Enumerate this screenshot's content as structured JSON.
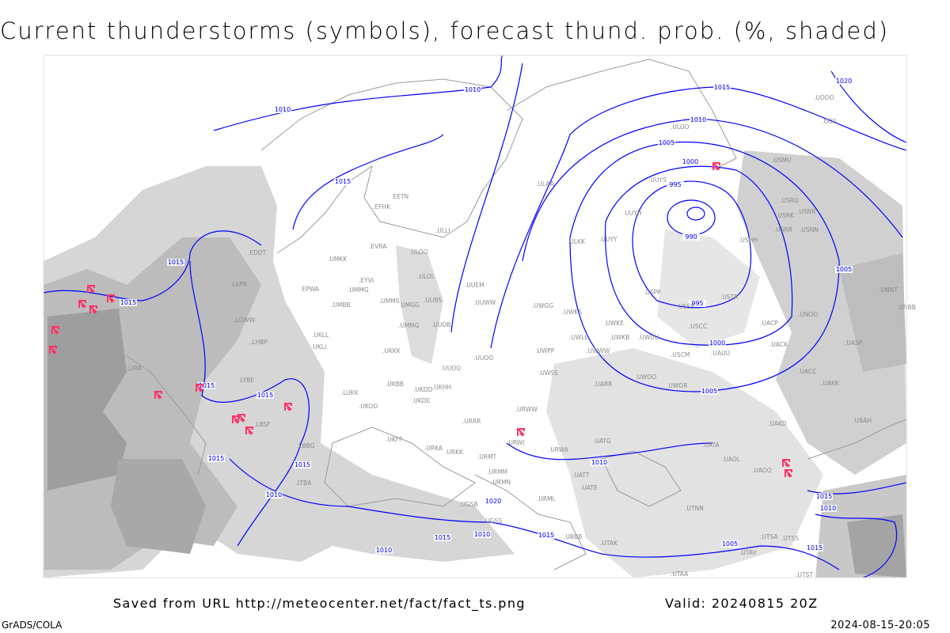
{
  "title": "Current thunderstorms (symbols), forecast thund. prob. (%, shaded)",
  "footer": {
    "saved": "Saved from URL http://meteocenter.net/fact/fact_ts.png",
    "valid": "Valid: 20240815 20Z",
    "software": "GrADS/COLA",
    "timestamp": "2024-08-15-20:05"
  },
  "colors": {
    "isobar": "#0000ff",
    "thunderstorm_symbol": "#ff3366",
    "shading": "#b0b0b0",
    "coastline": "#999999"
  },
  "icons": {
    "thunderstorm": "thunderstorm-symbol-icon"
  },
  "isobar_labels": [
    "1010",
    "1010",
    "1015",
    "1020",
    "1010",
    "1005",
    "1000",
    "995",
    "990",
    "995",
    "1000",
    "1005",
    "1005",
    "1015",
    "1015",
    "1015",
    "1015",
    "1015",
    "1015",
    "1015",
    "1010",
    "1020",
    "1010",
    "1015",
    "1015",
    "1010",
    "1010",
    "1005",
    "1015",
    "1015",
    "1010"
  ],
  "stations": [
    "ULOO",
    "UUYS",
    "UUYH",
    "ULKK",
    "UUYY",
    "USRO",
    "USRK",
    "USNR",
    "USRR",
    "USNN",
    "USMU",
    "USHH",
    "USPP",
    "USSS",
    "USTR",
    "UNOO",
    "USCC",
    "UACP",
    "UACK",
    "UWKS",
    "UWKE",
    "UWLL",
    "UWKB",
    "UWUU",
    "UWWW",
    "USCM",
    "UAUU",
    "UASP",
    "UNNT",
    "UNBB",
    "UACC",
    "UAKK",
    "UWOO",
    "UWOR",
    "UARR",
    "UATG",
    "UAKD",
    "UAAH",
    "UATA",
    "UAOL",
    "UAOO",
    "UATE",
    "UATT",
    "UTNN",
    "UTSA",
    "UTSS",
    "UTAV",
    "UTAA",
    "UTAK",
    "UTST",
    "URWA",
    "URWI",
    "URMT",
    "URMM",
    "URMN",
    "URML",
    "UGSB",
    "UGSS",
    "UBBB",
    "URRR",
    "URKK",
    "URKA",
    "UKFF",
    "UKOO",
    "UKHH",
    "UKDD",
    "UKDE",
    "UKBB",
    "UKKK",
    "UKLL",
    "UKLI",
    "UMMG",
    "UUOB",
    "UUOO",
    "UUOO",
    "UWPP",
    "UWSS",
    "URWW",
    "ULAA",
    "UUEM",
    "UUWW",
    "UWGG",
    "UUBS",
    "UMMS",
    "UMGG",
    "UMMG",
    "UMBB",
    "EPWA",
    "EYVI",
    "UMKK",
    "EVRA",
    "ULOL",
    "ULOO",
    "EETN",
    "EFHK",
    "ULLI",
    "EDDT",
    "LKPR",
    "LOWW",
    "LHBP",
    "LIRA",
    "LYBE",
    "LUKK",
    "LBSF",
    "LBBG",
    "LTBA",
    "UOOO",
    "UOII"
  ]
}
